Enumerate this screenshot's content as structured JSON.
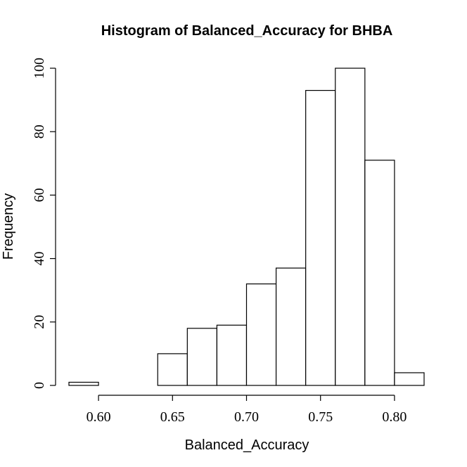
{
  "chart_data": {
    "type": "bar",
    "title": "Histogram of Balanced_Accuracy for BHBA",
    "xlabel": "Balanced_Accuracy",
    "ylabel": "Frequency",
    "xlim": [
      0.58,
      0.82
    ],
    "ylim": [
      0,
      100
    ],
    "x_ticks": [
      0.6,
      0.65,
      0.7,
      0.75,
      0.8
    ],
    "x_tick_labels": [
      "0.60",
      "0.65",
      "0.70",
      "0.75",
      "0.80"
    ],
    "y_ticks": [
      0,
      20,
      40,
      60,
      80,
      100
    ],
    "y_tick_labels": [
      "0",
      "20",
      "40",
      "60",
      "80",
      "100"
    ],
    "bins": [
      {
        "from": 0.58,
        "to": 0.6,
        "count": 1
      },
      {
        "from": 0.6,
        "to": 0.62,
        "count": 0
      },
      {
        "from": 0.62,
        "to": 0.64,
        "count": 0
      },
      {
        "from": 0.64,
        "to": 0.66,
        "count": 10
      },
      {
        "from": 0.66,
        "to": 0.68,
        "count": 18
      },
      {
        "from": 0.68,
        "to": 0.7,
        "count": 19
      },
      {
        "from": 0.7,
        "to": 0.72,
        "count": 32
      },
      {
        "from": 0.72,
        "to": 0.74,
        "count": 37
      },
      {
        "from": 0.74,
        "to": 0.76,
        "count": 93
      },
      {
        "from": 0.76,
        "to": 0.78,
        "count": 100
      },
      {
        "from": 0.78,
        "to": 0.8,
        "count": 71
      },
      {
        "from": 0.8,
        "to": 0.82,
        "count": 4
      }
    ],
    "bar_fill": "#ffffff",
    "bar_stroke": "#000000",
    "grid": false,
    "legend": "none"
  }
}
